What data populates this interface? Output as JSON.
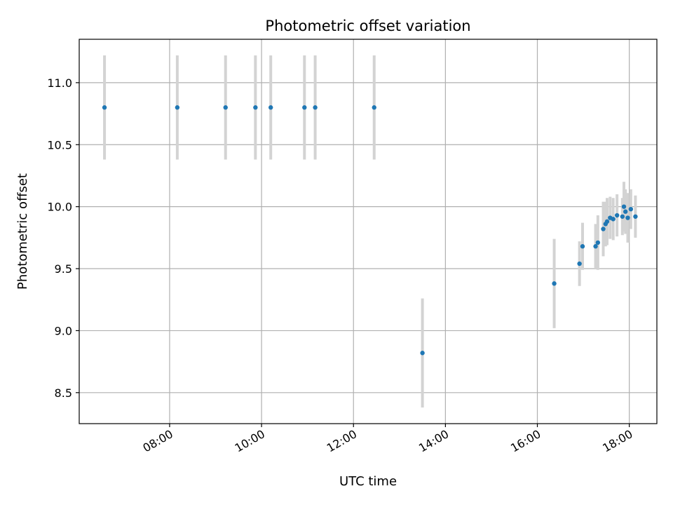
{
  "chart_data": {
    "type": "scatter",
    "title": "Photometric offset variation",
    "xlabel": "UTC time",
    "ylabel": "Photometric offset",
    "grid": true,
    "x_tick_labels": [
      "08:00",
      "10:00",
      "12:00",
      "14:00",
      "16:00",
      "18:00"
    ],
    "y_tick_labels": [
      "8.5",
      "9.0",
      "9.5",
      "10.0",
      "10.5",
      "11.0"
    ],
    "colors": {
      "point": "#1f77b4",
      "errorbar": "#d3d3d3",
      "grid": "#b0b0b0"
    },
    "series": [
      {
        "points": [
          {
            "x": "06:35",
            "y": 10.8,
            "yerr": 0.42
          },
          {
            "x": "08:10",
            "y": 10.8,
            "yerr": 0.42
          },
          {
            "x": "09:13",
            "y": 10.8,
            "yerr": 0.42
          },
          {
            "x": "09:52",
            "y": 10.8,
            "yerr": 0.42
          },
          {
            "x": "10:12",
            "y": 10.8,
            "yerr": 0.42
          },
          {
            "x": "10:56",
            "y": 10.8,
            "yerr": 0.42
          },
          {
            "x": "11:10",
            "y": 10.8,
            "yerr": 0.42
          },
          {
            "x": "12:27",
            "y": 10.8,
            "yerr": 0.42
          },
          {
            "x": "13:30",
            "y": 8.82,
            "yerr": 0.44
          },
          {
            "x": "16:22",
            "y": 9.38,
            "yerr": 0.36
          },
          {
            "x": "16:55",
            "y": 9.54,
            "yerr": 0.18
          },
          {
            "x": "16:59",
            "y": 9.68,
            "yerr": 0.19
          },
          {
            "x": "17:16",
            "y": 9.68,
            "yerr": 0.18
          },
          {
            "x": "17:19",
            "y": 9.71,
            "yerr": 0.22
          },
          {
            "x": "17:26",
            "y": 9.82,
            "yerr": 0.22
          },
          {
            "x": "17:29",
            "y": 9.86,
            "yerr": 0.18
          },
          {
            "x": "17:31",
            "y": 9.88,
            "yerr": 0.19
          },
          {
            "x": "17:35",
            "y": 9.91,
            "yerr": 0.17
          },
          {
            "x": "17:39",
            "y": 9.9,
            "yerr": 0.17
          },
          {
            "x": "17:44",
            "y": 9.93,
            "yerr": 0.17
          },
          {
            "x": "17:51",
            "y": 9.92,
            "yerr": 0.15
          },
          {
            "x": "17:53",
            "y": 10.0,
            "yerr": 0.2
          },
          {
            "x": "17:55",
            "y": 9.96,
            "yerr": 0.18
          },
          {
            "x": "17:58",
            "y": 9.91,
            "yerr": 0.2
          },
          {
            "x": "18:02",
            "y": 9.98,
            "yerr": 0.16
          },
          {
            "x": "18:08",
            "y": 9.92,
            "yerr": 0.17
          }
        ]
      }
    ]
  }
}
